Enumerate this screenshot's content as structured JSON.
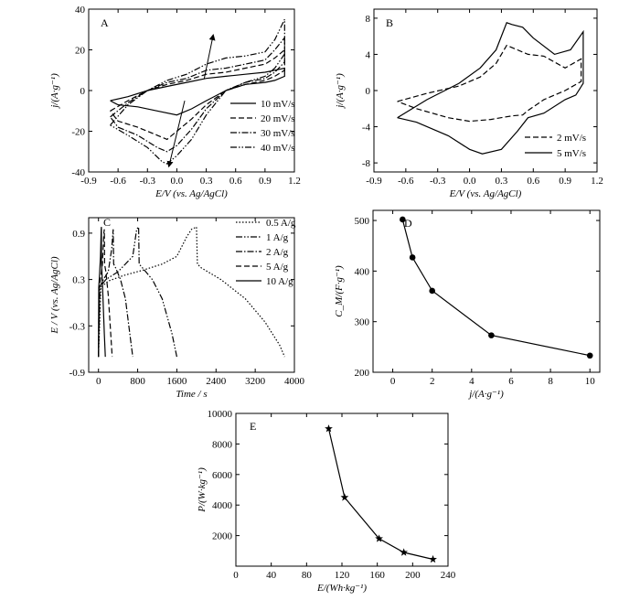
{
  "chart_data": [
    {
      "panel": "A",
      "type": "line",
      "xlabel": "E/V (vs. Ag/AgCl)",
      "ylabel": "j/(A·g⁻¹)",
      "xlim": [
        -0.9,
        1.2
      ],
      "ylim": [
        -40,
        40
      ],
      "xticks": [
        -0.9,
        -0.6,
        -0.3,
        0.0,
        0.3,
        0.6,
        0.9,
        1.2
      ],
      "yticks": [
        -40,
        -20,
        0,
        20,
        40
      ],
      "xtick_labels": [
        "-0.9",
        "-0.6",
        "-0.3",
        "0.0",
        "0.3",
        "0.6",
        "0.9",
        "1.2"
      ],
      "ytick_labels": [
        "-40",
        "-20",
        "0",
        "20",
        "40"
      ],
      "legend_position": "bottom-right",
      "series": [
        {
          "name": "10 mV/s",
          "style": "solid",
          "x": [
            -0.68,
            -0.5,
            -0.3,
            -0.1,
            0.1,
            0.3,
            0.5,
            0.7,
            0.9,
            1.0,
            1.1,
            1.1,
            1.0,
            0.9,
            0.7,
            0.5,
            0.3,
            0.15,
            0.0,
            -0.2,
            -0.4,
            -0.6,
            -0.68
          ],
          "values": [
            -5,
            -3,
            0,
            2,
            4,
            6,
            7,
            8,
            9,
            10,
            11,
            7,
            5,
            4,
            3,
            0,
            -5,
            -9,
            -12,
            -10,
            -8,
            -7,
            -5
          ]
        },
        {
          "name": "20 mV/s",
          "style": "dash",
          "x": [
            -0.68,
            -0.5,
            -0.3,
            -0.1,
            0.1,
            0.3,
            0.5,
            0.7,
            0.9,
            1.0,
            1.1,
            1.1,
            1.0,
            0.9,
            0.7,
            0.5,
            0.3,
            0.15,
            0.0,
            -0.1,
            -0.2,
            -0.4,
            -0.6,
            -0.68
          ],
          "values": [
            -10,
            -5,
            0,
            3,
            5,
            8,
            9,
            11,
            13,
            16,
            20,
            10,
            7,
            5,
            3,
            0,
            -7,
            -14,
            -20,
            -24,
            -22,
            -18,
            -15,
            -10
          ]
        },
        {
          "name": "30 mV/s",
          "style": "dashdot",
          "x": [
            -0.68,
            -0.5,
            -0.3,
            -0.1,
            0.1,
            0.3,
            0.5,
            0.7,
            0.9,
            1.0,
            1.1,
            1.1,
            1.0,
            0.9,
            0.7,
            0.5,
            0.3,
            0.15,
            0.0,
            -0.1,
            -0.2,
            -0.4,
            -0.6,
            -0.68
          ],
          "values": [
            -13,
            -6,
            0,
            4,
            6,
            10,
            11,
            13,
            15,
            20,
            26,
            14,
            9,
            6,
            4,
            0,
            -9,
            -19,
            -27,
            -30,
            -28,
            -22,
            -18,
            -13
          ]
        },
        {
          "name": "40 mV/s",
          "style": "dashdotdot",
          "x": [
            -0.68,
            -0.5,
            -0.3,
            -0.1,
            0.1,
            0.3,
            0.5,
            0.7,
            0.9,
            1.0,
            1.1,
            1.1,
            1.0,
            0.9,
            0.7,
            0.5,
            0.3,
            0.15,
            0.0,
            -0.1,
            -0.15,
            -0.3,
            -0.5,
            -0.68
          ],
          "values": [
            -17,
            -7,
            0,
            5,
            8,
            13,
            16,
            17,
            19,
            25,
            35,
            18,
            11,
            7,
            4,
            0,
            -12,
            -24,
            -32,
            -36,
            -35,
            -28,
            -22,
            -17
          ]
        }
      ]
    },
    {
      "panel": "B",
      "type": "line",
      "xlabel": "E/V (vs. Ag/AgCl)",
      "ylabel": "j/(A·g⁻¹)",
      "xlim": [
        -0.9,
        1.2
      ],
      "ylim": [
        -9,
        9
      ],
      "xticks": [
        -0.9,
        -0.6,
        -0.3,
        0.0,
        0.3,
        0.6,
        0.9,
        1.2
      ],
      "yticks": [
        -8,
        -4,
        0,
        4,
        8
      ],
      "xtick_labels": [
        "-0.9",
        "-0.6",
        "-0.3",
        "0.0",
        "0.3",
        "0.6",
        "0.9",
        "1.2"
      ],
      "ytick_labels": [
        "-8",
        "-4",
        "0",
        "4",
        "8"
      ],
      "legend_position": "bottom-right",
      "series": [
        {
          "name": "2 mV/s",
          "style": "dash",
          "x": [
            -0.68,
            -0.4,
            -0.1,
            0.1,
            0.25,
            0.35,
            0.45,
            0.55,
            0.7,
            0.9,
            1.05,
            1.05,
            0.9,
            0.7,
            0.55,
            0.5,
            0.4,
            0.2,
            0.0,
            -0.2,
            -0.5,
            -0.68
          ],
          "values": [
            -1.2,
            -0.3,
            0.5,
            1.5,
            3.0,
            5.0,
            4.5,
            4.0,
            3.8,
            2.5,
            3.5,
            1.0,
            0.0,
            -1.0,
            -2.2,
            -2.7,
            -2.8,
            -3.2,
            -3.4,
            -3.0,
            -2.0,
            -1.2
          ]
        },
        {
          "name": "5 mV/s",
          "style": "solid",
          "x": [
            -0.68,
            -0.4,
            -0.1,
            0.1,
            0.25,
            0.35,
            0.4,
            0.5,
            0.6,
            0.8,
            0.95,
            1.07,
            1.07,
            1.0,
            0.9,
            0.7,
            0.55,
            0.45,
            0.3,
            0.12,
            0.0,
            -0.2,
            -0.5,
            -0.68
          ],
          "values": [
            -3.0,
            -1.0,
            0.8,
            2.5,
            4.5,
            7.5,
            7.3,
            7.0,
            5.8,
            4.0,
            4.5,
            6.5,
            0.8,
            -0.5,
            -1.0,
            -2.5,
            -3.0,
            -4.5,
            -6.5,
            -7.0,
            -6.5,
            -5.0,
            -3.5,
            -3.0
          ]
        }
      ]
    },
    {
      "panel": "C",
      "type": "line",
      "xlabel": "Time / s",
      "ylabel": "E / V (vs. Ag/AgCl)",
      "xlim": [
        -200,
        4000
      ],
      "ylim": [
        -0.9,
        1.1
      ],
      "xticks": [
        0,
        800,
        1600,
        2400,
        3200,
        4000
      ],
      "yticks": [
        -0.9,
        -0.3,
        0.3,
        0.9
      ],
      "xtick_labels": [
        "0",
        "800",
        "1600",
        "2400",
        "3200",
        "4000"
      ],
      "ytick_labels": [
        "-0.9",
        "-0.3",
        "0.3",
        "0.9"
      ],
      "legend_position": "top-right",
      "series": [
        {
          "name": "0.5 A/g",
          "style": "dot",
          "x": [
            0,
            50,
            200,
            500,
            900,
            1300,
            1600,
            1800,
            1900,
            2000,
            2020,
            2100,
            2500,
            3000,
            3400,
            3700,
            3800
          ],
          "values": [
            -0.7,
            0.2,
            0.28,
            0.35,
            0.42,
            0.5,
            0.6,
            0.85,
            0.95,
            0.98,
            0.5,
            0.45,
            0.3,
            0.05,
            -0.25,
            -0.55,
            -0.7
          ]
        },
        {
          "name": "1 A/g",
          "style": "dashdotdot",
          "x": [
            0,
            30,
            150,
            400,
            700,
            780,
            820,
            830,
            900,
            1100,
            1300,
            1500,
            1600
          ],
          "values": [
            -0.7,
            0.2,
            0.3,
            0.4,
            0.6,
            0.95,
            0.98,
            0.5,
            0.45,
            0.3,
            0.05,
            -0.4,
            -0.7
          ]
        },
        {
          "name": "2 A/g",
          "style": "dashdot",
          "x": [
            0,
            20,
            100,
            200,
            270,
            300,
            310,
            350,
            450,
            550,
            650,
            700
          ],
          "values": [
            -0.7,
            0.2,
            0.3,
            0.4,
            0.7,
            0.95,
            0.5,
            0.45,
            0.3,
            0.05,
            -0.45,
            -0.7
          ]
        },
        {
          "name": "5 A/g",
          "style": "dash",
          "x": [
            0,
            10,
            40,
            80,
            110,
            120,
            125,
            150,
            200,
            250,
            280
          ],
          "values": [
            -0.7,
            0.2,
            0.3,
            0.5,
            0.9,
            0.95,
            0.5,
            0.4,
            0.1,
            -0.4,
            -0.7
          ]
        },
        {
          "name": "10 A/g",
          "style": "solid",
          "x": [
            0,
            5,
            20,
            40,
            55,
            60,
            62,
            70,
            90,
            120,
            140
          ],
          "values": [
            -0.7,
            0.2,
            0.35,
            0.6,
            0.95,
            0.98,
            0.5,
            0.4,
            0.1,
            -0.4,
            -0.7
          ]
        }
      ]
    },
    {
      "panel": "D",
      "type": "line",
      "xlabel": "j/(A·g⁻¹)",
      "ylabel": "C_M/(F·g⁻¹)",
      "xlim": [
        -1,
        10.5
      ],
      "ylim": [
        200,
        520
      ],
      "xticks": [
        0,
        2,
        4,
        6,
        8,
        10
      ],
      "yticks": [
        200,
        300,
        400,
        500
      ],
      "xtick_labels": [
        "0",
        "2",
        "4",
        "6",
        "8",
        "10"
      ],
      "ytick_labels": [
        "200",
        "300",
        "400",
        "500"
      ],
      "marker": "circle",
      "series": [
        {
          "x": [
            0.5,
            1,
            2,
            5,
            10
          ],
          "values": [
            502,
            427,
            361,
            273,
            233
          ]
        }
      ]
    },
    {
      "panel": "E",
      "type": "line",
      "xlabel": "E/(Wh·kg⁻¹)",
      "ylabel": "P/(W·kg⁻¹)",
      "xlim": [
        0,
        240
      ],
      "ylim": [
        0,
        10000
      ],
      "xticks": [
        0,
        40,
        80,
        120,
        160,
        200,
        240
      ],
      "yticks": [
        2000,
        4000,
        6000,
        8000,
        10000
      ],
      "xtick_labels": [
        "0",
        "40",
        "80",
        "120",
        "160",
        "200",
        "240"
      ],
      "ytick_labels": [
        "2000",
        "4000",
        "6000",
        "8000",
        "10000"
      ],
      "marker": "star",
      "series": [
        {
          "x": [
            105,
            123,
            162,
            190,
            223
          ],
          "values": [
            9000,
            4500,
            1800,
            900,
            450
          ]
        }
      ]
    }
  ],
  "colors": {
    "ink": "#000000",
    "background": "#ffffff"
  }
}
